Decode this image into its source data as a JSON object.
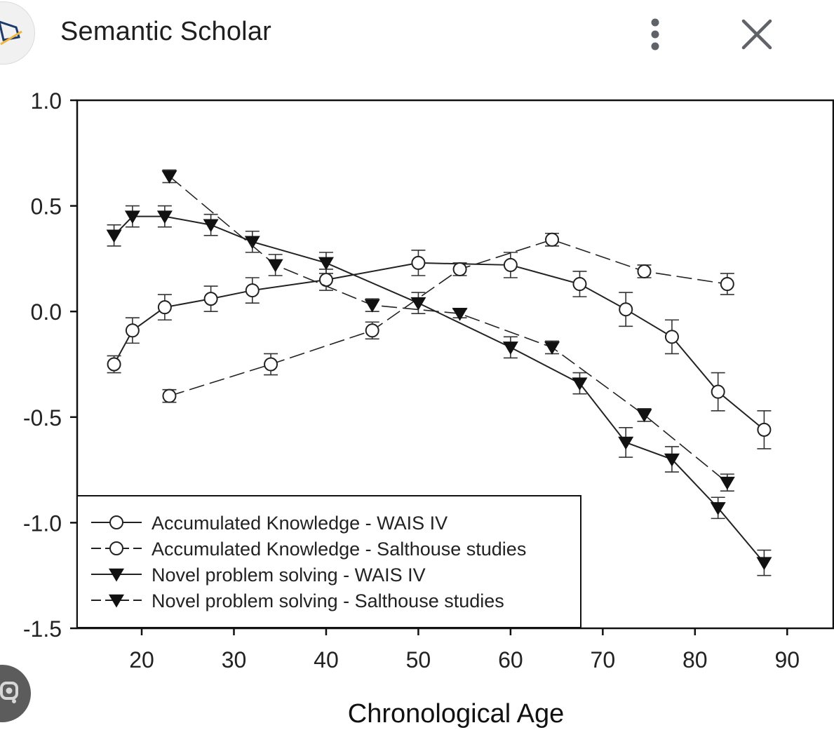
{
  "header": {
    "site_title": "Semantic Scholar",
    "more_icon": "more-vert-icon",
    "close_icon": "close-icon",
    "favicon_icon": "semantic-scholar-logo-icon"
  },
  "lens_icon": "google-lens-icon",
  "chart_data": {
    "type": "line",
    "title": "",
    "xlabel": "Chronological Age",
    "ylabel": "",
    "xlim": [
      13,
      95
    ],
    "ylim": [
      -1.5,
      1.0
    ],
    "xticks": [
      "20",
      "30",
      "40",
      "50",
      "60",
      "70",
      "80",
      "90"
    ],
    "xtick_values": [
      20,
      30,
      40,
      50,
      60,
      70,
      80,
      90
    ],
    "yticks": [
      "1.0",
      "0.5",
      "0.0",
      "-0.5",
      "-1.0",
      "-1.5"
    ],
    "ytick_values": [
      1.0,
      0.5,
      0.0,
      -0.5,
      -1.0,
      -1.5
    ],
    "grid": false,
    "legend_position": "bottom-left",
    "series": [
      {
        "name": "Accumulated Knowledge - WAIS IV",
        "marker": "open-circle",
        "line": "solid",
        "x": [
          17,
          19,
          22.5,
          27.5,
          32,
          40,
          50,
          60,
          67.5,
          72.5,
          77.5,
          82.5,
          87.5
        ],
        "y": [
          -0.25,
          -0.09,
          0.02,
          0.06,
          0.1,
          0.15,
          0.23,
          0.22,
          0.13,
          0.01,
          -0.12,
          -0.38,
          -0.56
        ],
        "err": [
          0.04,
          0.06,
          0.06,
          0.06,
          0.06,
          0.05,
          0.06,
          0.06,
          0.06,
          0.08,
          0.08,
          0.09,
          0.09
        ]
      },
      {
        "name": "Accumulated Knowledge - Salthouse studies",
        "marker": "open-circle",
        "line": "dashed",
        "x": [
          23,
          34,
          45,
          54.5,
          64.5,
          74.5,
          83.5
        ],
        "y": [
          -0.4,
          -0.25,
          -0.09,
          0.2,
          0.34,
          0.19,
          0.13
        ],
        "err": [
          0.03,
          0.05,
          0.04,
          0.03,
          0.03,
          0.03,
          0.05
        ]
      },
      {
        "name": "Novel problem solving - WAIS IV",
        "marker": "filled-triangle-down",
        "line": "solid",
        "x": [
          17,
          19,
          22.5,
          27.5,
          32,
          40,
          50,
          60,
          67.5,
          72.5,
          77.5,
          82.5,
          87.5
        ],
        "y": [
          0.36,
          0.45,
          0.45,
          0.41,
          0.33,
          0.23,
          0.04,
          -0.17,
          -0.34,
          -0.62,
          -0.7,
          -0.93,
          -1.19
        ],
        "err": [
          0.05,
          0.05,
          0.05,
          0.05,
          0.05,
          0.05,
          0.05,
          0.05,
          0.05,
          0.07,
          0.06,
          0.05,
          0.06
        ]
      },
      {
        "name": "Novel problem solving - Salthouse studies",
        "marker": "filled-triangle-down",
        "line": "dashed",
        "x": [
          23,
          34.5,
          45,
          54.5,
          64.5,
          74.5,
          83.5
        ],
        "y": [
          0.64,
          0.22,
          0.03,
          -0.01,
          -0.17,
          -0.49,
          -0.81
        ],
        "err": [
          0.03,
          0.05,
          0.03,
          0.02,
          0.03,
          0.03,
          0.04
        ]
      }
    ]
  }
}
